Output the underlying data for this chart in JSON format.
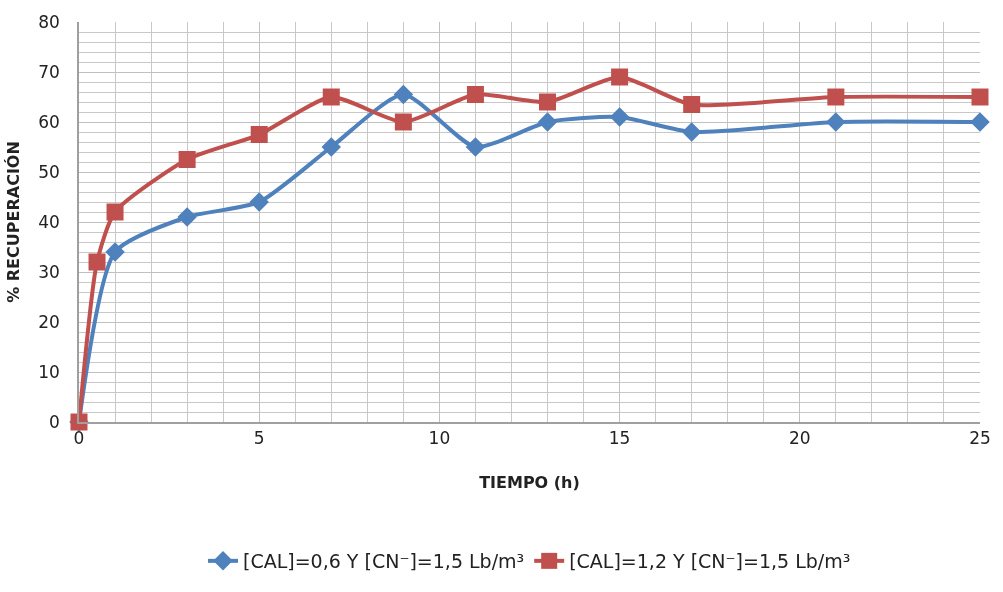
{
  "chart_data": {
    "type": "line",
    "xlabel": "TIEMPO (h)",
    "ylabel": "% RECUPERACIÓN",
    "xlim": [
      0,
      25
    ],
    "xticks": [
      0,
      5,
      10,
      15,
      20,
      25
    ],
    "ylim": [
      0,
      80
    ],
    "yticks": [
      0,
      10,
      20,
      30,
      40,
      50,
      60,
      70,
      80
    ],
    "grid": true,
    "legend": "bottom",
    "line_style": "solid",
    "series": [
      {
        "name": "[CAL]=0,6 Y [CN⁻]=1,5 Lb/m³",
        "color": "#4f81bd",
        "marker": "diamond",
        "x": [
          0,
          1,
          3,
          5,
          7,
          9,
          11,
          13,
          15,
          17,
          21,
          25
        ],
        "values": [
          0,
          34,
          41,
          44,
          55,
          65.5,
          55,
          60,
          61,
          58,
          60,
          60
        ]
      },
      {
        "name": "[CAL]=1,2 Y [CN⁻]=1,5 Lb/m³",
        "color": "#c0504d",
        "marker": "square",
        "x": [
          0,
          0.5,
          1,
          3,
          5,
          7,
          9,
          11,
          13,
          15,
          17,
          21,
          25
        ],
        "values": [
          0,
          32,
          42,
          52.5,
          57.5,
          65,
          60,
          65.5,
          64,
          69,
          63.5,
          65,
          65
        ]
      }
    ]
  }
}
